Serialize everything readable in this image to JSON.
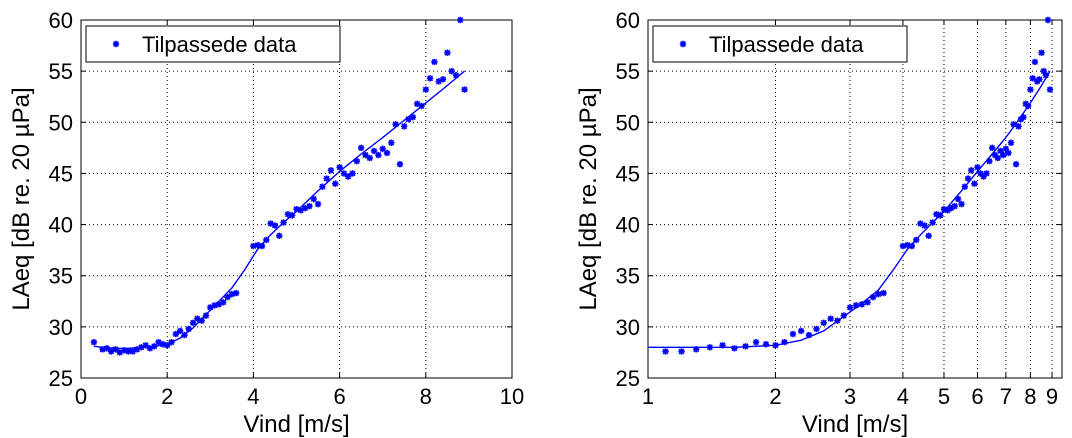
{
  "chart_data": [
    {
      "type": "scatter",
      "xscale": "linear",
      "xlabel": "Vind [m/s]",
      "ylabel": "LAeq [dB re. 20 µPa]",
      "xlim": [
        0,
        10
      ],
      "ylim": [
        25,
        60
      ],
      "xticks": [
        "0",
        "2",
        "4",
        "6",
        "8",
        "10"
      ],
      "yticks": [
        "25",
        "30",
        "35",
        "40",
        "45",
        "50",
        "55",
        "60"
      ],
      "grid": true,
      "legend_position": "top-left",
      "color": "#0000ff",
      "series": [
        {
          "name": "Tilpassede data",
          "style": "markers",
          "points": [
            [
              0.3,
              28.5
            ],
            [
              0.5,
              27.8
            ],
            [
              0.6,
              27.9
            ],
            [
              0.7,
              27.6
            ],
            [
              0.8,
              27.8
            ],
            [
              0.9,
              27.5
            ],
            [
              1.0,
              27.7
            ],
            [
              1.1,
              27.6
            ],
            [
              1.2,
              27.6
            ],
            [
              1.3,
              27.8
            ],
            [
              1.4,
              28.0
            ],
            [
              1.5,
              28.2
            ],
            [
              1.6,
              27.9
            ],
            [
              1.7,
              28.1
            ],
            [
              1.8,
              28.5
            ],
            [
              1.9,
              28.3
            ],
            [
              2.0,
              28.2
            ],
            [
              2.1,
              28.5
            ],
            [
              2.2,
              29.3
            ],
            [
              2.3,
              29.6
            ],
            [
              2.4,
              29.2
            ],
            [
              2.5,
              29.8
            ],
            [
              2.6,
              30.4
            ],
            [
              2.7,
              30.8
            ],
            [
              2.8,
              30.6
            ],
            [
              2.9,
              31.1
            ],
            [
              3.0,
              31.9
            ],
            [
              3.1,
              32.1
            ],
            [
              3.2,
              32.2
            ],
            [
              3.3,
              32.4
            ],
            [
              3.4,
              32.9
            ],
            [
              3.5,
              33.2
            ],
            [
              3.6,
              33.3
            ],
            [
              4.0,
              37.9
            ],
            [
              4.1,
              38.0
            ],
            [
              4.2,
              37.9
            ],
            [
              4.3,
              38.5
            ],
            [
              4.4,
              40.1
            ],
            [
              4.5,
              39.9
            ],
            [
              4.6,
              38.9
            ],
            [
              4.7,
              40.2
            ],
            [
              4.8,
              41.0
            ],
            [
              4.9,
              40.9
            ],
            [
              5.0,
              41.5
            ],
            [
              5.1,
              41.4
            ],
            [
              5.2,
              41.6
            ],
            [
              5.3,
              41.8
            ],
            [
              5.4,
              42.5
            ],
            [
              5.5,
              42.0
            ],
            [
              5.6,
              43.7
            ],
            [
              5.7,
              44.5
            ],
            [
              5.8,
              45.3
            ],
            [
              5.9,
              44.0
            ],
            [
              6.0,
              45.6
            ],
            [
              6.1,
              45.0
            ],
            [
              6.2,
              44.7
            ],
            [
              6.3,
              45.0
            ],
            [
              6.4,
              46.2
            ],
            [
              6.5,
              47.5
            ],
            [
              6.6,
              46.8
            ],
            [
              6.7,
              46.5
            ],
            [
              6.8,
              47.2
            ],
            [
              6.9,
              46.8
            ],
            [
              7.0,
              47.4
            ],
            [
              7.1,
              47.0
            ],
            [
              7.2,
              48.0
            ],
            [
              7.3,
              49.8
            ],
            [
              7.4,
              45.9
            ],
            [
              7.5,
              49.6
            ],
            [
              7.6,
              50.3
            ],
            [
              7.7,
              50.5
            ],
            [
              7.8,
              51.8
            ],
            [
              7.9,
              51.6
            ],
            [
              8.0,
              53.2
            ],
            [
              8.1,
              54.3
            ],
            [
              8.2,
              55.9
            ],
            [
              8.3,
              54.0
            ],
            [
              8.4,
              54.2
            ],
            [
              8.5,
              56.8
            ],
            [
              8.6,
              55.0
            ],
            [
              8.7,
              54.6
            ],
            [
              8.8,
              60.0
            ],
            [
              8.9,
              53.2
            ]
          ]
        },
        {
          "name": "",
          "style": "line",
          "points": [
            [
              0.3,
              28.1
            ],
            [
              0.5,
              28.0
            ],
            [
              0.8,
              27.9
            ],
            [
              1.1,
              27.9
            ],
            [
              1.4,
              28.0
            ],
            [
              1.7,
              28.1
            ],
            [
              2.0,
              28.3
            ],
            [
              2.3,
              28.9
            ],
            [
              2.6,
              29.9
            ],
            [
              2.9,
              31.2
            ],
            [
              3.2,
              32.5
            ],
            [
              3.5,
              33.8
            ],
            [
              3.8,
              35.6
            ],
            [
              4.1,
              37.6
            ],
            [
              4.4,
              39.0
            ],
            [
              4.7,
              40.2
            ],
            [
              5.0,
              41.3
            ],
            [
              5.5,
              43.3
            ],
            [
              6.0,
              45.2
            ],
            [
              6.5,
              46.9
            ],
            [
              7.0,
              48.5
            ],
            [
              7.5,
              50.2
            ],
            [
              8.0,
              51.9
            ],
            [
              8.5,
              53.6
            ],
            [
              8.9,
              55.0
            ]
          ]
        }
      ]
    },
    {
      "type": "scatter",
      "xscale": "log",
      "xlabel": "Vind [m/s]",
      "ylabel": "LAeq [dB re. 20 µPa]",
      "xlim": [
        1,
        9.5
      ],
      "ylim": [
        25,
        60
      ],
      "xticks": [
        1,
        2,
        3,
        4,
        5,
        6,
        7,
        8,
        9
      ],
      "xticklabels": [
        "1",
        "2",
        "3",
        "4",
        "5",
        "6",
        "7",
        "8",
        "9"
      ],
      "yticks": [
        "25",
        "30",
        "35",
        "40",
        "45",
        "50",
        "55",
        "60"
      ],
      "grid": true,
      "legend_position": "top-left",
      "color": "#0000ff",
      "series": [
        {
          "name": "Tilpassede data",
          "style": "markers",
          "points": [
            [
              1.1,
              27.6
            ],
            [
              1.2,
              27.6
            ],
            [
              1.3,
              27.8
            ],
            [
              1.4,
              28.0
            ],
            [
              1.5,
              28.2
            ],
            [
              1.6,
              27.9
            ],
            [
              1.7,
              28.1
            ],
            [
              1.8,
              28.5
            ],
            [
              1.9,
              28.3
            ],
            [
              2.0,
              28.2
            ],
            [
              2.1,
              28.5
            ],
            [
              2.2,
              29.3
            ],
            [
              2.3,
              29.6
            ],
            [
              2.4,
              29.2
            ],
            [
              2.5,
              29.8
            ],
            [
              2.6,
              30.4
            ],
            [
              2.7,
              30.8
            ],
            [
              2.8,
              30.6
            ],
            [
              2.9,
              31.1
            ],
            [
              3.0,
              31.9
            ],
            [
              3.1,
              32.1
            ],
            [
              3.2,
              32.2
            ],
            [
              3.3,
              32.4
            ],
            [
              3.4,
              32.9
            ],
            [
              3.5,
              33.2
            ],
            [
              3.6,
              33.3
            ],
            [
              4.0,
              37.9
            ],
            [
              4.1,
              38.0
            ],
            [
              4.2,
              37.9
            ],
            [
              4.3,
              38.5
            ],
            [
              4.4,
              40.1
            ],
            [
              4.5,
              39.9
            ],
            [
              4.6,
              38.9
            ],
            [
              4.7,
              40.2
            ],
            [
              4.8,
              41.0
            ],
            [
              4.9,
              40.9
            ],
            [
              5.0,
              41.5
            ],
            [
              5.1,
              41.4
            ],
            [
              5.2,
              41.6
            ],
            [
              5.3,
              41.8
            ],
            [
              5.4,
              42.5
            ],
            [
              5.5,
              42.0
            ],
            [
              5.6,
              43.7
            ],
            [
              5.7,
              44.5
            ],
            [
              5.8,
              45.3
            ],
            [
              5.9,
              44.0
            ],
            [
              6.0,
              45.6
            ],
            [
              6.1,
              45.0
            ],
            [
              6.2,
              44.7
            ],
            [
              6.3,
              45.0
            ],
            [
              6.4,
              46.2
            ],
            [
              6.5,
              47.5
            ],
            [
              6.6,
              46.8
            ],
            [
              6.7,
              46.5
            ],
            [
              6.8,
              47.2
            ],
            [
              6.9,
              46.8
            ],
            [
              7.0,
              47.4
            ],
            [
              7.1,
              47.0
            ],
            [
              7.2,
              48.0
            ],
            [
              7.3,
              49.8
            ],
            [
              7.4,
              45.9
            ],
            [
              7.5,
              49.6
            ],
            [
              7.6,
              50.3
            ],
            [
              7.7,
              50.5
            ],
            [
              7.8,
              51.8
            ],
            [
              7.9,
              51.6
            ],
            [
              8.0,
              53.2
            ],
            [
              8.1,
              54.3
            ],
            [
              8.2,
              55.9
            ],
            [
              8.3,
              54.0
            ],
            [
              8.4,
              54.2
            ],
            [
              8.5,
              56.8
            ],
            [
              8.6,
              55.0
            ],
            [
              8.7,
              54.6
            ],
            [
              8.8,
              60.0
            ],
            [
              8.9,
              53.2
            ]
          ]
        },
        {
          "name": "",
          "style": "line",
          "points": [
            [
              1.0,
              28.0
            ],
            [
              1.3,
              28.0
            ],
            [
              1.6,
              28.0
            ],
            [
              2.0,
              28.2
            ],
            [
              2.3,
              28.7
            ],
            [
              2.6,
              29.6
            ],
            [
              2.9,
              31.0
            ],
            [
              3.2,
              32.3
            ],
            [
              3.5,
              33.6
            ],
            [
              3.8,
              35.6
            ],
            [
              4.1,
              37.6
            ],
            [
              4.4,
              39.0
            ],
            [
              4.7,
              40.2
            ],
            [
              5.0,
              41.3
            ],
            [
              5.5,
              43.3
            ],
            [
              6.0,
              45.2
            ],
            [
              6.5,
              46.9
            ],
            [
              7.0,
              48.5
            ],
            [
              7.5,
              50.2
            ],
            [
              8.0,
              51.9
            ],
            [
              8.5,
              53.6
            ],
            [
              8.9,
              55.0
            ]
          ]
        }
      ]
    }
  ]
}
